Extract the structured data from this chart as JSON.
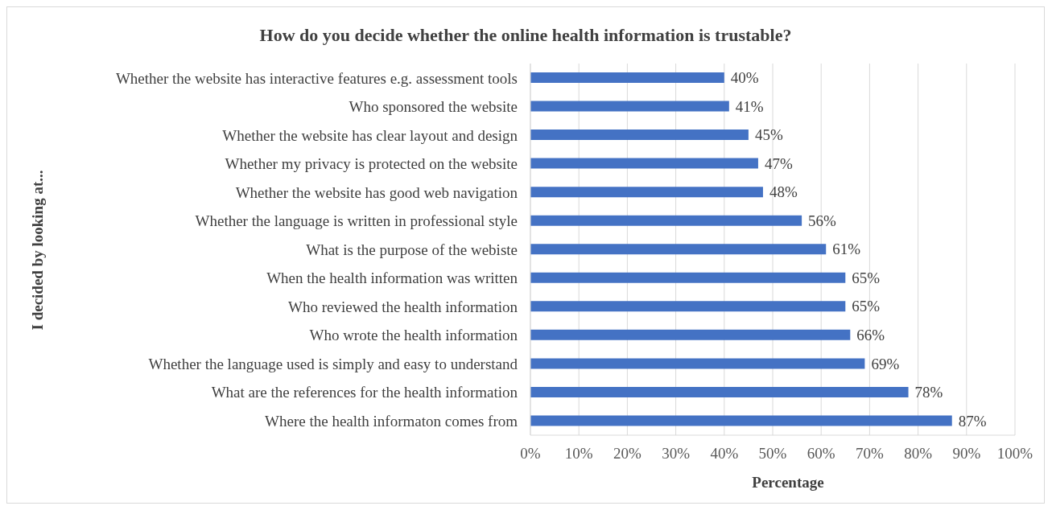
{
  "chart_data": {
    "type": "bar",
    "orientation": "horizontal",
    "title": "How do you decide whether the online health information is trustable?",
    "xlabel": "Percentage",
    "ylabel": "I decided by looking at...",
    "categories": [
      "Whether the website has interactive features e.g. assessment tools",
      "Who sponsored the website",
      "Whether the website has clear layout and design",
      "Whether my privacy is protected on the website",
      "Whether the website has good web navigation",
      "Whether the language is written in professional style",
      "What is the purpose of the webiste",
      "When the health information was written",
      "Who reviewed the health information",
      "Who wrote the health information",
      "Whether the language used is simply and easy to understand",
      "What are the references for the health information",
      "Where the health informaton comes from"
    ],
    "values": [
      40,
      41,
      45,
      47,
      48,
      56,
      61,
      65,
      65,
      66,
      69,
      78,
      87
    ],
    "value_labels": [
      "40%",
      "41%",
      "45%",
      "47%",
      "48%",
      "56%",
      "61%",
      "65%",
      "65%",
      "66%",
      "69%",
      "78%",
      "87%"
    ],
    "color": "#4472c4",
    "xlim": [
      0,
      100
    ],
    "xticks": [
      {
        "value": 0,
        "label": "0%"
      },
      {
        "value": 10,
        "label": "10%"
      },
      {
        "value": 20,
        "label": "20%"
      },
      {
        "value": 30,
        "label": "30%"
      },
      {
        "value": 40,
        "label": "40%"
      },
      {
        "value": 50,
        "label": "50%"
      },
      {
        "value": 60,
        "label": "60%"
      },
      {
        "value": 70,
        "label": "70%"
      },
      {
        "value": 80,
        "label": "80%"
      },
      {
        "value": 90,
        "label": "90%"
      },
      {
        "value": 100,
        "label": "100%"
      }
    ],
    "grid": "x",
    "legend": false
  }
}
